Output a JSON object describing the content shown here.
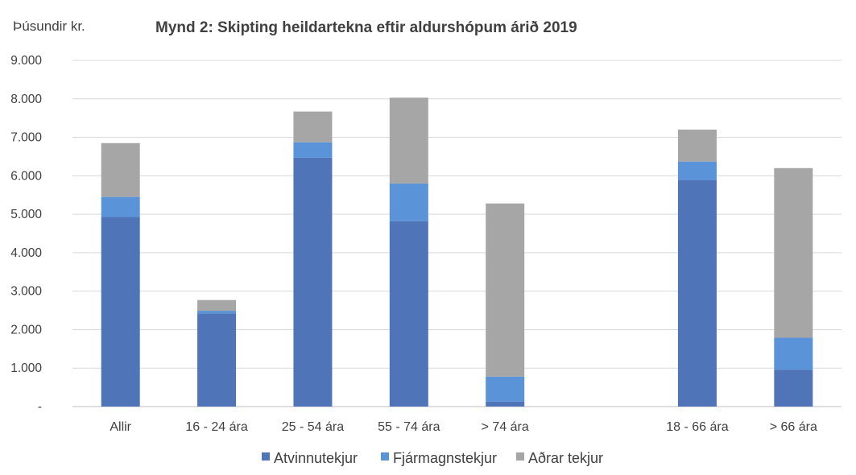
{
  "chart_data": {
    "type": "bar",
    "stacked": true,
    "title": "Mynd 2:  Skipting heildartekna eftir aldurshópum árið 2019",
    "ylabel": "Þúsundir kr.",
    "ylim": [
      0,
      9000
    ],
    "yticks": [
      0,
      1000,
      2000,
      3000,
      4000,
      5000,
      6000,
      7000,
      8000,
      9000
    ],
    "ytick_labels": [
      "-",
      "1.000",
      "2.000",
      "3.000",
      "4.000",
      "5.000",
      "6.000",
      "7.000",
      "8.000",
      "9.000"
    ],
    "categories": [
      "Allir",
      "16 - 24 ára",
      "25 - 54 ára",
      "55 - 74 ára",
      "> 74 ára",
      "",
      "18 - 66 ára",
      "> 66 ára"
    ],
    "series": [
      {
        "name": "Atvinnutekjur",
        "color": "#4f74b8",
        "values": [
          4930,
          2420,
          6470,
          4820,
          130,
          null,
          5890,
          960
        ]
      },
      {
        "name": "Fjármagnstekjur",
        "color": "#5a93d8",
        "values": [
          520,
          70,
          400,
          980,
          650,
          null,
          480,
          830
        ]
      },
      {
        "name": "Aðrar tekjur",
        "color": "#a6a6a6",
        "values": [
          1400,
          280,
          800,
          2230,
          4500,
          null,
          830,
          4410
        ]
      }
    ],
    "grid": true,
    "legend": "bottom-center"
  }
}
